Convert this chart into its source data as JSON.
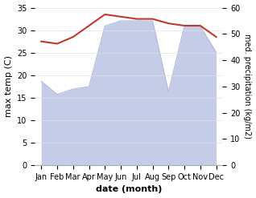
{
  "months": [
    "Jan",
    "Feb",
    "Mar",
    "Apr",
    "May",
    "Jun",
    "Jul",
    "Aug",
    "Sep",
    "Oct",
    "Nov",
    "Dec"
  ],
  "max_temp": [
    27.5,
    27.0,
    28.5,
    31.0,
    33.5,
    33.0,
    32.5,
    32.5,
    31.5,
    31.0,
    31.0,
    28.5
  ],
  "precipitation": [
    32.0,
    27.0,
    29.0,
    30.0,
    53.0,
    55.0,
    55.0,
    55.0,
    28.0,
    53.0,
    53.0,
    43.0
  ],
  "temp_color": "#c0392b",
  "precip_fill_color": "#c5cce8",
  "precip_line_color": "#b0bada",
  "left_ylim": [
    0,
    35
  ],
  "right_ylim": [
    0,
    60
  ],
  "left_yticks": [
    0,
    5,
    10,
    15,
    20,
    25,
    30,
    35
  ],
  "right_yticks": [
    0,
    10,
    20,
    30,
    40,
    50,
    60
  ],
  "xlabel": "date (month)",
  "ylabel_left": "max temp (C)",
  "ylabel_right": "med. precipitation (kg/m2)",
  "figsize": [
    3.18,
    2.47
  ],
  "dpi": 100
}
